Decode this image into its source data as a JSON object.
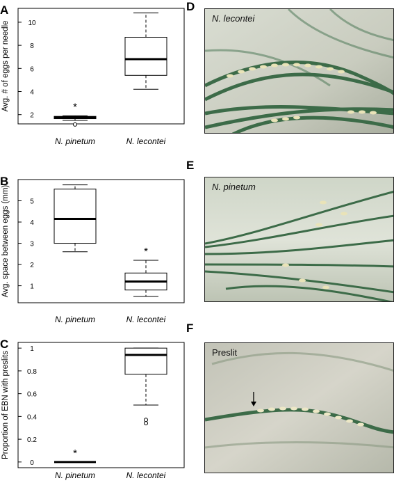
{
  "chart_data": [
    {
      "type": "boxplot",
      "panel_label": "A",
      "ylabel": "Avg. # of eggs per needle",
      "ylim": [
        1.2,
        11.2
      ],
      "yticks": [
        2,
        4,
        6,
        8,
        10
      ],
      "categories": [
        "N. pinetum",
        "N. lecontei"
      ],
      "boxes": [
        {
          "name": "N. pinetum",
          "whisker_low": 1.5,
          "q1": 1.65,
          "median": 1.75,
          "q3": 1.85,
          "whisker_high": 1.9,
          "outliers": [
            1.15
          ],
          "annotation": "*"
        },
        {
          "name": "N. lecontei",
          "whisker_low": 4.2,
          "q1": 5.4,
          "median": 6.8,
          "q3": 8.7,
          "whisker_high": 10.8,
          "outliers": [],
          "annotation": ""
        }
      ],
      "grid": false
    },
    {
      "type": "boxplot",
      "panel_label": "B",
      "ylabel": "Avg. space between eggs (mm)",
      "ylim": [
        0.2,
        6.0
      ],
      "yticks": [
        1,
        2,
        3,
        4,
        5
      ],
      "categories": [
        "N. pinetum",
        "N. lecontei"
      ],
      "boxes": [
        {
          "name": "N. pinetum",
          "whisker_low": 2.6,
          "q1": 3.0,
          "median": 4.15,
          "q3": 5.55,
          "whisker_high": 5.75,
          "outliers": [],
          "annotation": ""
        },
        {
          "name": "N. lecontei",
          "whisker_low": 0.5,
          "q1": 0.8,
          "median": 1.2,
          "q3": 1.6,
          "whisker_high": 2.2,
          "outliers": [],
          "annotation": "*"
        }
      ],
      "grid": false
    },
    {
      "type": "boxplot",
      "panel_label": "C",
      "ylabel": "Proportion of EBN with preslits",
      "ylim": [
        -0.05,
        1.05
      ],
      "yticks": [
        0,
        0.2,
        0.4,
        0.6,
        0.8,
        1
      ],
      "ytick_labels": [
        "0",
        "0.2",
        "0.4",
        "0.6",
        "0.8",
        "1"
      ],
      "categories": [
        "N. pinetum",
        "N. lecontei"
      ],
      "boxes": [
        {
          "name": "N. pinetum",
          "whisker_low": 0,
          "q1": 0,
          "median": 0,
          "q3": 0,
          "whisker_high": 0,
          "outliers": [],
          "annotation": "*"
        },
        {
          "name": "N. lecontei",
          "whisker_low": 0.5,
          "q1": 0.77,
          "median": 0.94,
          "q3": 1.0,
          "whisker_high": 1.0,
          "outliers": [
            0.37,
            0.34
          ],
          "annotation": ""
        }
      ],
      "grid": false
    }
  ],
  "photos": {
    "d": {
      "panel_label": "D",
      "caption": "N. lecontei"
    },
    "e": {
      "panel_label": "E",
      "caption": "N. pinetum"
    },
    "f": {
      "panel_label": "F",
      "caption": "Preslit"
    }
  },
  "colors": {
    "box_fill": "#ffffff",
    "stroke": "#000000",
    "needle": "#3c6b48",
    "egg": "#e9e3b8"
  }
}
